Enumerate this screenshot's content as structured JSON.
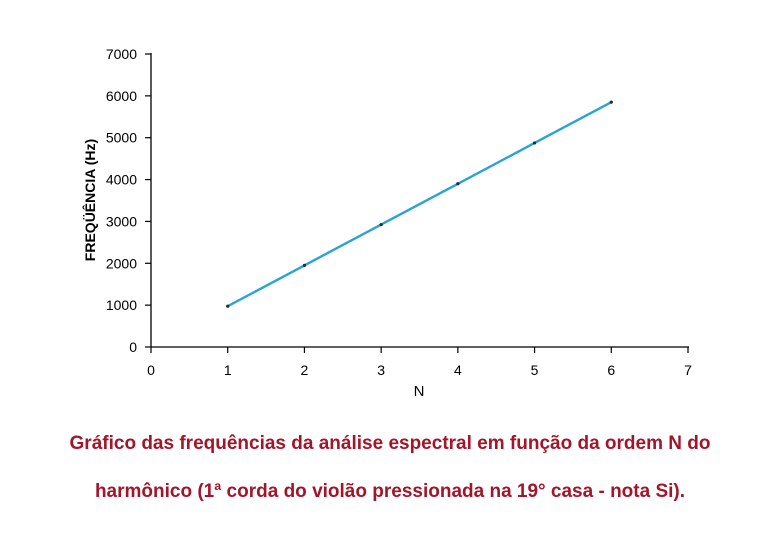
{
  "chart_data": {
    "type": "line",
    "title": "",
    "xlabel": "N",
    "ylabel": "FREQÜÊNCIA (Hz)",
    "xlim": [
      0,
      7
    ],
    "ylim": [
      0,
      7000
    ],
    "x_ticks": [
      0,
      1,
      2,
      3,
      4,
      5,
      6,
      7
    ],
    "y_ticks": [
      0,
      1000,
      2000,
      3000,
      4000,
      5000,
      6000,
      7000
    ],
    "grid": false,
    "legend": "none",
    "line_color": "#2ba3d4",
    "marker_color": "#1f2a44",
    "series": [
      {
        "x": [
          1,
          2,
          3,
          4,
          5,
          6
        ],
        "values": [
          975,
          1950,
          2925,
          3900,
          4875,
          5850
        ]
      }
    ]
  },
  "caption": {
    "line1": "Gráfico das frequências da análise espectral em função da ordem N do",
    "line2": "harmônico (1ª corda do violão pressionada na 19° casa - nota Si).",
    "color": "#a0162b"
  }
}
